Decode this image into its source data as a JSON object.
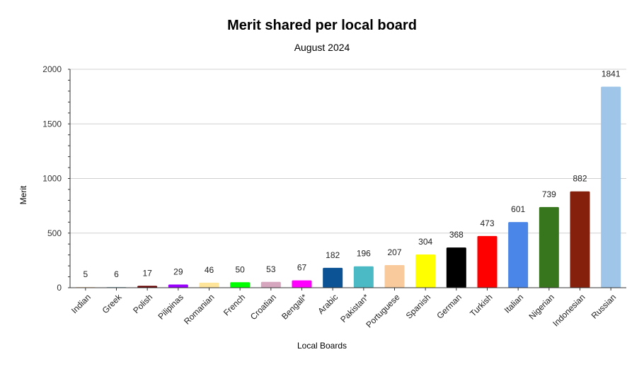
{
  "chart_data": {
    "type": "bar",
    "title": "Merit shared per local board",
    "subtitle": "August 2024",
    "xlabel": "Local Boards",
    "ylabel": "Merit",
    "ylim": [
      0,
      2000
    ],
    "yticks": [
      0,
      500,
      1000,
      1500,
      2000
    ],
    "grid": true,
    "legend": "none",
    "categories": [
      "Indian",
      "Greek",
      "Polish",
      "Pilipinas",
      "Romanian",
      "French",
      "Croatian",
      "Bengali*",
      "Arabic",
      "Pakistan*",
      "Portuguese",
      "Spanish",
      "German",
      "Turkish",
      "Italian",
      "Nigerian",
      "Indonesian",
      "Russian"
    ],
    "values": [
      5,
      6,
      17,
      29,
      46,
      50,
      53,
      67,
      182,
      196,
      207,
      304,
      368,
      473,
      601,
      739,
      882,
      1841
    ],
    "colors": [
      "#f6b26b",
      "#76a5af",
      "#660000",
      "#9900ff",
      "#ffe599",
      "#00ff00",
      "#d5a6bd",
      "#ff00ff",
      "#0b5394",
      "#4bbac4",
      "#f9cb9c",
      "#ffff00",
      "#000000",
      "#ff0000",
      "#4a86e8",
      "#38761d",
      "#85200c",
      "#9fc5e8"
    ]
  }
}
